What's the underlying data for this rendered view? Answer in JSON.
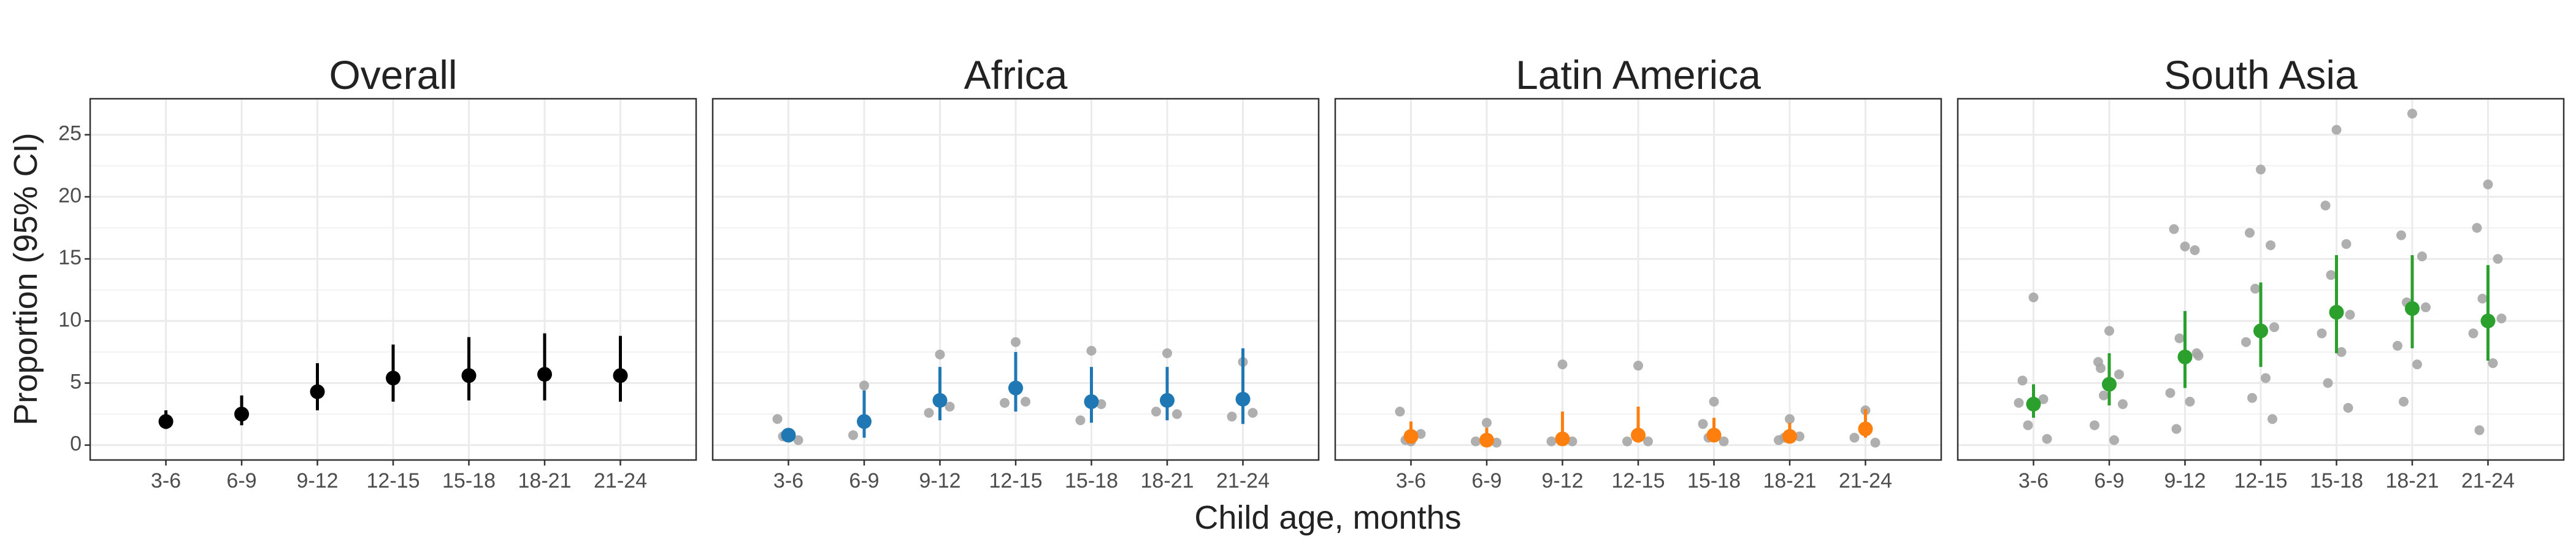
{
  "figure": {
    "xlabel": "Child age, months",
    "ylabel": "Proportion (95% CI)"
  },
  "chart_data": [
    {
      "type": "pointrange",
      "title": "Overall",
      "color": "#000000",
      "categories": [
        "3-6",
        "6-9",
        "9-12",
        "12-15",
        "15-18",
        "18-21",
        "21-24"
      ],
      "values": [
        1.9,
        2.5,
        4.3,
        5.4,
        5.6,
        5.7,
        5.6
      ],
      "lower": [
        1.3,
        1.6,
        2.8,
        3.5,
        3.6,
        3.6,
        3.5
      ],
      "upper": [
        2.8,
        4.0,
        6.6,
        8.1,
        8.7,
        9.0,
        8.8
      ],
      "ylim": [
        -1.2,
        27.9
      ],
      "yticks": [
        0,
        5,
        10,
        15,
        20,
        25
      ],
      "grid": true
    },
    {
      "type": "pointrange",
      "title": "Africa",
      "color": "#1f77b4",
      "study_color": "#a6a6a6",
      "categories": [
        "3-6",
        "6-9",
        "9-12",
        "12-15",
        "15-18",
        "18-21",
        "21-24"
      ],
      "values": [
        0.8,
        1.9,
        3.6,
        4.6,
        3.5,
        3.6,
        3.7
      ],
      "lower": [
        0.3,
        0.6,
        2.0,
        2.7,
        1.8,
        2.0,
        1.7
      ],
      "upper": [
        1.3,
        4.4,
        6.3,
        7.5,
        6.3,
        6.3,
        7.8
      ],
      "study_values": [
        [
          0.9,
          2.1,
          0.4,
          0.7
        ],
        [
          4.8,
          0.8
        ],
        [
          7.3,
          2.6,
          3.1
        ],
        [
          8.3,
          3.4,
          3.5
        ],
        [
          7.6,
          2.0,
          3.3
        ],
        [
          7.4,
          2.7,
          2.5
        ],
        [
          6.7,
          2.3,
          2.6
        ]
      ],
      "ylim": [
        -1.2,
        27.9
      ],
      "yticks": [
        0,
        5,
        10,
        15,
        20,
        25
      ],
      "grid": true
    },
    {
      "type": "pointrange",
      "title": "Latin America",
      "color": "#ff7f0e",
      "study_color": "#a6a6a6",
      "categories": [
        "3-6",
        "6-9",
        "9-12",
        "12-15",
        "15-18",
        "18-21",
        "21-24"
      ],
      "values": [
        0.7,
        0.4,
        0.5,
        0.8,
        0.8,
        0.7,
        1.3
      ],
      "lower": [
        0.2,
        0.1,
        0.1,
        0.2,
        0.3,
        0.3,
        0.6
      ],
      "upper": [
        1.9,
        1.4,
        2.7,
        3.1,
        2.2,
        1.8,
        2.9
      ],
      "study_values": [
        [
          0.3,
          2.7,
          0.9,
          0.4
        ],
        [
          1.8,
          0.3,
          0.2
        ],
        [
          6.5,
          0.3,
          0.3
        ],
        [
          6.4,
          0.3,
          0.3
        ],
        [
          3.5,
          1.7,
          0.3,
          0.6
        ],
        [
          2.1,
          0.4,
          0.7,
          0.6
        ],
        [
          2.8,
          0.6,
          0.2
        ]
      ],
      "ylim": [
        -1.2,
        27.9
      ],
      "yticks": [
        0,
        5,
        10,
        15,
        20,
        25
      ],
      "grid": true
    },
    {
      "type": "pointrange",
      "title": "South Asia",
      "color": "#2ca02c",
      "study_color": "#a6a6a6",
      "categories": [
        "3-6",
        "6-9",
        "9-12",
        "12-15",
        "15-18",
        "18-21",
        "21-24"
      ],
      "values": [
        3.3,
        4.9,
        7.1,
        9.2,
        10.7,
        11.0,
        10.0
      ],
      "lower": [
        2.2,
        3.2,
        4.6,
        6.3,
        7.4,
        7.8,
        6.8
      ],
      "upper": [
        4.9,
        7.4,
        10.8,
        13.1,
        15.3,
        15.3,
        14.5
      ],
      "study_values": [
        [
          11.9,
          5.2,
          3.7,
          1.6,
          0.5,
          3.4
        ],
        [
          9.2,
          6.7,
          5.7,
          4.0,
          3.3,
          1.6,
          0.4,
          6.2
        ],
        [
          16.0,
          17.4,
          15.7,
          8.6,
          7.2,
          4.2,
          3.5,
          1.3,
          7.4
        ],
        [
          22.2,
          17.1,
          16.1,
          12.6,
          9.5,
          8.3,
          5.4,
          3.8,
          2.1
        ],
        [
          25.4,
          19.3,
          16.2,
          13.7,
          10.5,
          9.0,
          7.5,
          5.0,
          3.0
        ],
        [
          26.7,
          16.9,
          15.2,
          11.5,
          11.1,
          8.0,
          6.5,
          3.5
        ],
        [
          21.0,
          17.5,
          15.0,
          11.8,
          10.2,
          9.0,
          6.6,
          1.2
        ]
      ],
      "ylim": [
        -1.2,
        27.9
      ],
      "yticks": [
        0,
        5,
        10,
        15,
        20,
        25
      ],
      "grid": true
    }
  ]
}
